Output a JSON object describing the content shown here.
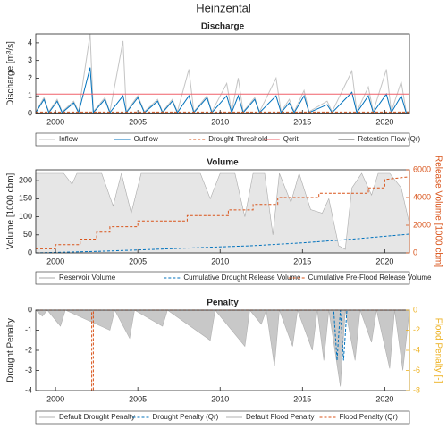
{
  "title": "Heinzental",
  "chart_data": [
    {
      "type": "line",
      "title": "Discharge",
      "ylabel": "Discharge [m³/s]",
      "xlim": [
        1998.8,
        2021.5
      ],
      "xticks": [
        2000,
        2005,
        2010,
        2015,
        2020
      ],
      "ylim": [
        0,
        4.5
      ],
      "yticks": [
        0,
        1,
        2,
        3,
        4
      ],
      "legend": "below",
      "x": [
        1998.8,
        1999.3,
        1999.6,
        2000.1,
        2000.4,
        2001.1,
        2001.4,
        2002.1,
        2002.3,
        2003.0,
        2003.3,
        2004.1,
        2004.3,
        2005.0,
        2005.4,
        2006.2,
        2006.5,
        2007.1,
        2007.4,
        2008.1,
        2008.4,
        2009.2,
        2009.5,
        2010.4,
        2010.7,
        2011.1,
        2011.4,
        2012.1,
        2012.4,
        2013.4,
        2013.7,
        2014.2,
        2014.5,
        2015.1,
        2015.4,
        2016.5,
        2016.8,
        2018.0,
        2018.3,
        2019.0,
        2019.3,
        2020.1,
        2020.4,
        2021.0,
        2021.3,
        2021.5
      ],
      "series": [
        {
          "name": "Inflow",
          "color": "#c4c4c4",
          "style": "solid",
          "values": [
            0.1,
            0.9,
            0.1,
            0.8,
            0.1,
            0.7,
            0.1,
            4.5,
            0.1,
            0.9,
            0.1,
            4.1,
            0.1,
            1.0,
            0.1,
            0.8,
            0.1,
            0.8,
            0.1,
            2.5,
            0.1,
            1.0,
            0.1,
            1.7,
            0.1,
            2.0,
            0.1,
            0.9,
            0.1,
            2.0,
            0.1,
            0.8,
            0.1,
            1.3,
            0.1,
            0.7,
            0.1,
            2.4,
            0.1,
            1.5,
            0.1,
            2.5,
            0.1,
            1.8,
            0.1,
            0.1
          ]
        },
        {
          "name": "Outflow",
          "color": "#0072bd",
          "style": "solid",
          "values": [
            0.05,
            0.8,
            0.05,
            0.7,
            0.05,
            0.6,
            0.05,
            2.6,
            0.05,
            0.8,
            0.05,
            1.0,
            0.05,
            0.9,
            0.05,
            0.7,
            0.05,
            0.7,
            0.05,
            1.0,
            0.05,
            0.9,
            0.05,
            1.0,
            0.05,
            1.0,
            0.05,
            0.8,
            0.05,
            1.0,
            0.05,
            0.6,
            0.05,
            1.0,
            0.05,
            0.5,
            0.05,
            1.2,
            0.05,
            1.0,
            0.05,
            1.1,
            0.05,
            1.0,
            0.05,
            0.05
          ]
        },
        {
          "name": "Drought Threshold",
          "color": "#d95319",
          "style": "dashed",
          "x": [
            1998.8,
            2021.5
          ],
          "values": [
            0.08,
            0.08
          ]
        },
        {
          "name": "Qcrit",
          "color": "#f0606a",
          "style": "solid",
          "x": [
            1998.8,
            2021.5
          ],
          "values": [
            1.1,
            1.1
          ]
        },
        {
          "name": "Retention Flow (Qr)",
          "color": "#555555",
          "style": "solid",
          "x": [
            1998.8,
            2021.5
          ],
          "values": [
            0.03,
            0.03
          ]
        }
      ]
    },
    {
      "type": "line",
      "title": "Volume",
      "ylabel": "Volume [1000 cbm]",
      "y2label": "Release Volume [1000 cbm]",
      "y2color": "#d95319",
      "xlim": [
        1998.8,
        2021.5
      ],
      "xticks": [
        2000,
        2005,
        2010,
        2015,
        2020
      ],
      "ylim": [
        0,
        230
      ],
      "yticks": [
        0,
        50,
        100,
        150,
        200
      ],
      "y2lim": [
        0,
        6000
      ],
      "y2ticks": [
        0,
        2000,
        4000,
        6000
      ],
      "legend": "below",
      "series": [
        {
          "name": "Reservoir Volume",
          "color": "#aaaaaa",
          "fill": "#e6e6e6",
          "style": "solid",
          "x": [
            1998.8,
            2000.5,
            2001.0,
            2001.3,
            2002.8,
            2003.5,
            2004.0,
            2004.6,
            2005.2,
            2005.8,
            2008.8,
            2009.4,
            2010.0,
            2010.9,
            2011.5,
            2012.0,
            2012.7,
            2013.2,
            2013.6,
            2014.3,
            2014.8,
            2015.5,
            2016.2,
            2016.6,
            2017.2,
            2017.6,
            2018.0,
            2018.6,
            2019.2,
            2019.6,
            2020.3,
            2021.0,
            2021.5
          ],
          "values": [
            220,
            220,
            190,
            220,
            220,
            130,
            220,
            110,
            220,
            220,
            220,
            150,
            220,
            220,
            100,
            220,
            220,
            50,
            220,
            140,
            220,
            120,
            110,
            150,
            20,
            10,
            180,
            220,
            160,
            220,
            220,
            180,
            80
          ]
        },
        {
          "name": "Cumulative Drought Release Volume",
          "color": "#0072bd",
          "style": "dashed",
          "x": [
            1998.8,
            2003,
            2006,
            2009,
            2012,
            2015,
            2018,
            2021.5
          ],
          "values": [
            0,
            5,
            10,
            15,
            20,
            28,
            38,
            52
          ]
        },
        {
          "name": "Cumulative Pre-Flood Release Volume",
          "color": "#d95319",
          "style": "dashed",
          "axis": "y2",
          "x": [
            1998.8,
            2000.0,
            2000.0,
            2001.5,
            2001.5,
            2002.5,
            2002.5,
            2003.3,
            2003.3,
            2005.0,
            2005.0,
            2008.0,
            2008.0,
            2010.5,
            2010.5,
            2012.0,
            2012.0,
            2013.5,
            2013.5,
            2016.0,
            2016.0,
            2019.0,
            2019.0,
            2020.0,
            2020.0,
            2021.5
          ],
          "values": [
            300,
            300,
            600,
            600,
            1000,
            1000,
            1500,
            1500,
            1900,
            1900,
            2300,
            2300,
            2700,
            2700,
            3100,
            3100,
            3500,
            3500,
            4000,
            4000,
            4300,
            4300,
            4700,
            4700,
            5300,
            5500
          ]
        }
      ]
    },
    {
      "type": "line",
      "title": "Penalty",
      "ylabel": "Drought Penalty",
      "y2label": "Flood Penalty [-]",
      "y2color": "#edb120",
      "xlim": [
        1998.8,
        2021.5
      ],
      "xticks": [
        2000,
        2005,
        2010,
        2015,
        2020
      ],
      "ylim": [
        -4,
        0
      ],
      "yticks": [
        0,
        -1,
        -2,
        -3,
        -4
      ],
      "y2lim": [
        -8,
        0
      ],
      "y2ticks": [
        0,
        -2,
        -4,
        -6,
        -8
      ],
      "legend": "below",
      "series": [
        {
          "name": "Default Drought Penalty",
          "color": "#b0b0b0",
          "fill": "#c8c8c8",
          "style": "solid",
          "x": [
            1998.8,
            1999.2,
            1999.5,
            2000.3,
            2000.6,
            2003.3,
            2003.6,
            2004.5,
            2004.8,
            2006.5,
            2006.8,
            2009.4,
            2009.7,
            2011.5,
            2011.8,
            2012.5,
            2012.8,
            2013.3,
            2013.6,
            2014.4,
            2014.7,
            2015.6,
            2015.9,
            2016.3,
            2016.6,
            2017.3,
            2017.6,
            2018.2,
            2018.5,
            2019.2,
            2019.5,
            2020.3,
            2020.6,
            2021.1,
            2021.5
          ],
          "values": [
            0,
            -0.3,
            0,
            -0.8,
            0,
            -1.0,
            0,
            -1.4,
            0,
            -0.8,
            0,
            -1.5,
            0,
            -1.8,
            0,
            -0.7,
            0,
            -2.8,
            0,
            -1.8,
            0,
            -2.0,
            0,
            -2.5,
            0,
            -3.8,
            0,
            -2.5,
            0,
            -1.6,
            0,
            -2.9,
            0,
            -3.0,
            0
          ]
        },
        {
          "name": "Drought Penalty (Qr)",
          "color": "#0072bd",
          "style": "dashed",
          "x": [
            1998.8,
            2016.9,
            2017.1,
            2017.3,
            2017.5,
            2017.7,
            2021.5
          ],
          "values": [
            0,
            0,
            -2.5,
            0,
            -2.5,
            0,
            0
          ]
        },
        {
          "name": "Default Flood Penalty",
          "color": "#b0b0b0",
          "style": "solid",
          "axis": "y2",
          "x": [
            1998.8,
            2021.5
          ],
          "values": [
            0,
            0
          ]
        },
        {
          "name": "Flood Penalty (Qr)",
          "color": "#d95319",
          "style": "dashed",
          "axis": "y2",
          "x": [
            1998.8,
            2002.2,
            2002.2,
            2002.3,
            2002.3,
            2021.5
          ],
          "values": [
            0,
            0,
            -8,
            -8,
            0,
            0
          ]
        }
      ]
    }
  ]
}
